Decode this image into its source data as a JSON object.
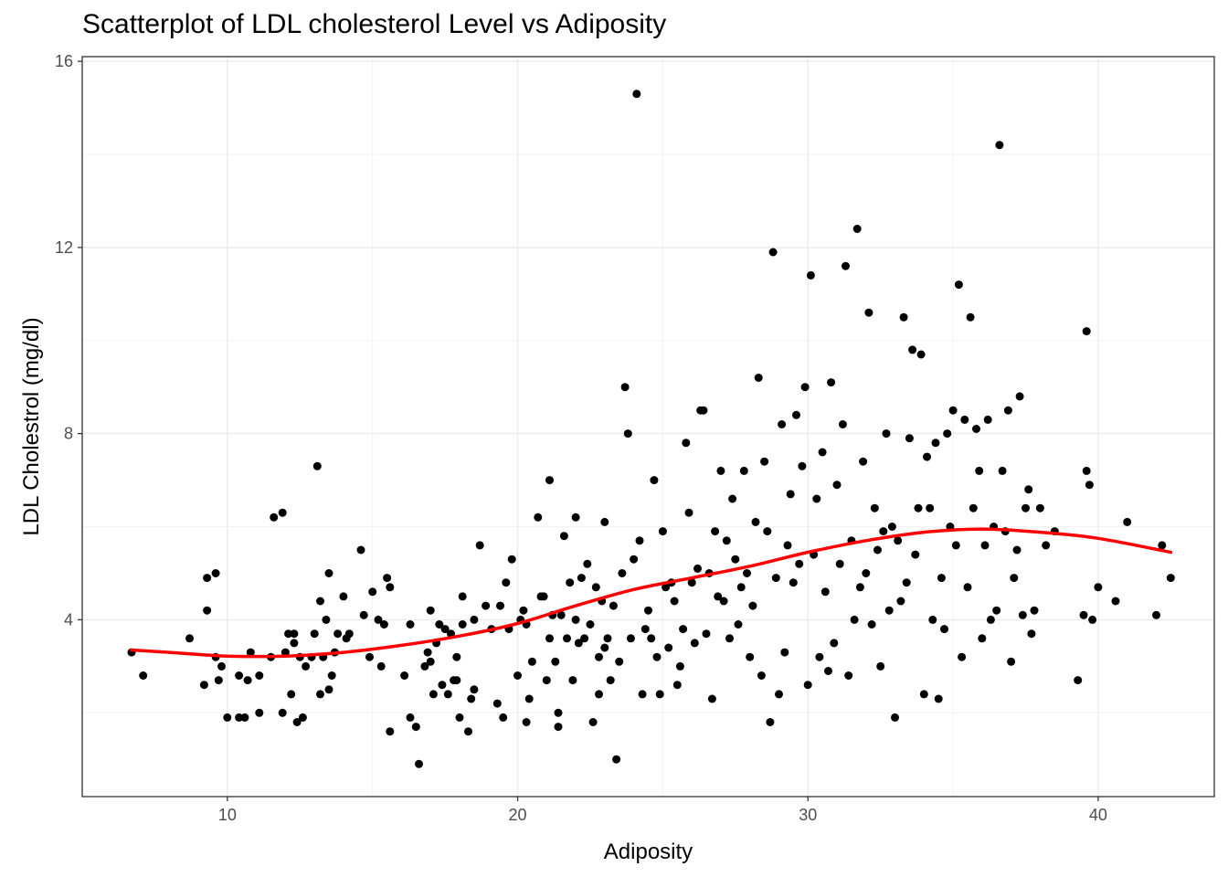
{
  "chart_data": {
    "type": "scatter",
    "title": "Scatterplot of LDL cholesterol Level vs Adiposity",
    "xlabel": "Adiposity",
    "ylabel": "LDL Cholestrol (mg/dl)",
    "xlim": [
      5,
      44
    ],
    "ylim": [
      0.2,
      16.1
    ],
    "x_ticks": [
      10,
      20,
      30,
      40
    ],
    "y_ticks": [
      4,
      8,
      12,
      16
    ],
    "x_tick_labels": [
      "10",
      "20",
      "30",
      "40"
    ],
    "y_tick_labels": [
      "4",
      "8",
      "12",
      "16"
    ],
    "grid": true,
    "point_color": "#000000",
    "line_color": "#ff0000",
    "smooth_line": [
      [
        6.7,
        3.35
      ],
      [
        8,
        3.3
      ],
      [
        10,
        3.22
      ],
      [
        12,
        3.22
      ],
      [
        14,
        3.3
      ],
      [
        16,
        3.45
      ],
      [
        18,
        3.65
      ],
      [
        20,
        3.92
      ],
      [
        22,
        4.3
      ],
      [
        24,
        4.65
      ],
      [
        26,
        4.9
      ],
      [
        28,
        5.15
      ],
      [
        30,
        5.45
      ],
      [
        32,
        5.7
      ],
      [
        34,
        5.88
      ],
      [
        36,
        5.95
      ],
      [
        38,
        5.88
      ],
      [
        40,
        5.75
      ],
      [
        42.5,
        5.45
      ]
    ],
    "points": [
      [
        6.7,
        3.3
      ],
      [
        7.1,
        2.8
      ],
      [
        8.7,
        3.6
      ],
      [
        9.2,
        2.6
      ],
      [
        9.3,
        4.9
      ],
      [
        9.3,
        4.2
      ],
      [
        9.6,
        5.0
      ],
      [
        9.6,
        3.2
      ],
      [
        9.7,
        2.7
      ],
      [
        9.8,
        3.0
      ],
      [
        10.0,
        1.9
      ],
      [
        10.4,
        1.9
      ],
      [
        10.4,
        2.8
      ],
      [
        10.6,
        1.9
      ],
      [
        10.7,
        2.7
      ],
      [
        10.8,
        3.3
      ],
      [
        11.1,
        2.8
      ],
      [
        11.1,
        2.0
      ],
      [
        11.5,
        3.2
      ],
      [
        11.6,
        6.2
      ],
      [
        11.9,
        6.3
      ],
      [
        11.9,
        2.0
      ],
      [
        12.0,
        3.3
      ],
      [
        12.1,
        3.7
      ],
      [
        12.2,
        2.4
      ],
      [
        12.3,
        3.5
      ],
      [
        12.3,
        3.7
      ],
      [
        12.4,
        1.8
      ],
      [
        12.5,
        3.2
      ],
      [
        12.6,
        1.9
      ],
      [
        12.7,
        3.0
      ],
      [
        12.9,
        3.2
      ],
      [
        13.0,
        3.7
      ],
      [
        13.1,
        7.3
      ],
      [
        13.2,
        2.4
      ],
      [
        13.2,
        4.4
      ],
      [
        13.3,
        3.2
      ],
      [
        13.4,
        4.0
      ],
      [
        13.5,
        5.0
      ],
      [
        13.5,
        2.5
      ],
      [
        13.6,
        2.8
      ],
      [
        13.7,
        3.3
      ],
      [
        13.8,
        3.7
      ],
      [
        14.0,
        4.5
      ],
      [
        14.1,
        3.6
      ],
      [
        14.2,
        3.7
      ],
      [
        14.6,
        5.5
      ],
      [
        14.7,
        4.1
      ],
      [
        14.9,
        3.2
      ],
      [
        15.0,
        4.6
      ],
      [
        15.2,
        4.0
      ],
      [
        15.3,
        3.0
      ],
      [
        15.4,
        3.9
      ],
      [
        15.5,
        4.9
      ],
      [
        15.6,
        4.7
      ],
      [
        15.6,
        1.6
      ],
      [
        16.1,
        2.8
      ],
      [
        16.3,
        1.9
      ],
      [
        16.3,
        3.9
      ],
      [
        16.5,
        1.7
      ],
      [
        16.6,
        0.9
      ],
      [
        16.8,
        3.0
      ],
      [
        16.9,
        3.3
      ],
      [
        17.0,
        3.1
      ],
      [
        17.0,
        4.2
      ],
      [
        17.1,
        2.4
      ],
      [
        17.2,
        3.5
      ],
      [
        17.3,
        3.9
      ],
      [
        17.4,
        2.6
      ],
      [
        17.5,
        3.8
      ],
      [
        17.6,
        2.4
      ],
      [
        17.7,
        3.7
      ],
      [
        17.8,
        2.7
      ],
      [
        17.9,
        3.2
      ],
      [
        17.9,
        2.7
      ],
      [
        18.0,
        1.9
      ],
      [
        18.1,
        4.5
      ],
      [
        18.1,
        3.9
      ],
      [
        18.3,
        1.6
      ],
      [
        18.4,
        2.3
      ],
      [
        18.5,
        2.5
      ],
      [
        18.5,
        4.0
      ],
      [
        18.7,
        5.6
      ],
      [
        18.9,
        4.3
      ],
      [
        19.1,
        3.8
      ],
      [
        19.3,
        2.2
      ],
      [
        19.4,
        4.3
      ],
      [
        19.5,
        1.9
      ],
      [
        19.6,
        4.8
      ],
      [
        19.7,
        3.8
      ],
      [
        19.8,
        5.3
      ],
      [
        20.0,
        2.8
      ],
      [
        20.1,
        4.0
      ],
      [
        20.2,
        4.2
      ],
      [
        20.3,
        1.8
      ],
      [
        20.3,
        3.9
      ],
      [
        20.4,
        2.3
      ],
      [
        20.5,
        3.1
      ],
      [
        20.7,
        6.2
      ],
      [
        20.8,
        4.5
      ],
      [
        20.9,
        4.5
      ],
      [
        21.0,
        2.7
      ],
      [
        21.1,
        3.6
      ],
      [
        21.1,
        7.0
      ],
      [
        21.2,
        4.1
      ],
      [
        21.3,
        3.1
      ],
      [
        21.4,
        2.0
      ],
      [
        21.4,
        1.7
      ],
      [
        21.5,
        4.1
      ],
      [
        21.6,
        5.8
      ],
      [
        21.7,
        3.6
      ],
      [
        21.8,
        4.8
      ],
      [
        21.9,
        2.7
      ],
      [
        22.0,
        4.0
      ],
      [
        22.0,
        6.2
      ],
      [
        22.1,
        3.5
      ],
      [
        22.2,
        4.9
      ],
      [
        22.3,
        3.6
      ],
      [
        22.4,
        5.2
      ],
      [
        22.5,
        3.9
      ],
      [
        22.6,
        1.8
      ],
      [
        22.7,
        4.7
      ],
      [
        22.8,
        3.2
      ],
      [
        22.8,
        2.4
      ],
      [
        22.9,
        4.4
      ],
      [
        23.0,
        3.4
      ],
      [
        23.0,
        6.1
      ],
      [
        23.1,
        3.6
      ],
      [
        23.2,
        2.7
      ],
      [
        23.3,
        4.3
      ],
      [
        23.4,
        1.0
      ],
      [
        23.5,
        3.1
      ],
      [
        23.6,
        5.0
      ],
      [
        23.7,
        9.0
      ],
      [
        23.8,
        8.0
      ],
      [
        23.9,
        3.6
      ],
      [
        24.0,
        5.3
      ],
      [
        24.1,
        15.3
      ],
      [
        24.2,
        5.7
      ],
      [
        24.3,
        2.4
      ],
      [
        24.4,
        3.8
      ],
      [
        24.5,
        4.2
      ],
      [
        24.6,
        3.6
      ],
      [
        24.7,
        7.0
      ],
      [
        24.8,
        3.2
      ],
      [
        24.9,
        2.4
      ],
      [
        25.0,
        5.9
      ],
      [
        25.1,
        4.7
      ],
      [
        25.2,
        3.4
      ],
      [
        25.3,
        4.8
      ],
      [
        25.4,
        4.4
      ],
      [
        25.5,
        2.6
      ],
      [
        25.6,
        3.0
      ],
      [
        25.7,
        3.8
      ],
      [
        25.8,
        7.8
      ],
      [
        25.9,
        6.3
      ],
      [
        26.0,
        4.8
      ],
      [
        26.1,
        3.5
      ],
      [
        26.2,
        5.1
      ],
      [
        26.3,
        8.5
      ],
      [
        26.4,
        8.5
      ],
      [
        26.5,
        3.7
      ],
      [
        26.6,
        5.0
      ],
      [
        26.7,
        2.3
      ],
      [
        26.8,
        5.9
      ],
      [
        26.9,
        4.5
      ],
      [
        27.0,
        7.2
      ],
      [
        27.1,
        4.4
      ],
      [
        27.2,
        5.7
      ],
      [
        27.3,
        3.6
      ],
      [
        27.4,
        6.6
      ],
      [
        27.5,
        5.3
      ],
      [
        27.6,
        3.9
      ],
      [
        27.7,
        4.7
      ],
      [
        27.8,
        7.2
      ],
      [
        27.9,
        5.0
      ],
      [
        28.0,
        3.2
      ],
      [
        28.1,
        4.3
      ],
      [
        28.2,
        6.1
      ],
      [
        28.3,
        9.2
      ],
      [
        28.4,
        2.8
      ],
      [
        28.5,
        7.4
      ],
      [
        28.6,
        5.9
      ],
      [
        28.7,
        1.8
      ],
      [
        28.8,
        11.9
      ],
      [
        28.9,
        4.9
      ],
      [
        29.0,
        2.4
      ],
      [
        29.1,
        8.2
      ],
      [
        29.2,
        3.3
      ],
      [
        29.3,
        5.6
      ],
      [
        29.4,
        6.7
      ],
      [
        29.5,
        4.8
      ],
      [
        29.6,
        8.4
      ],
      [
        29.7,
        5.2
      ],
      [
        29.8,
        7.3
      ],
      [
        29.9,
        9.0
      ],
      [
        30.0,
        2.6
      ],
      [
        30.1,
        11.4
      ],
      [
        30.2,
        5.4
      ],
      [
        30.3,
        6.6
      ],
      [
        30.4,
        3.2
      ],
      [
        30.5,
        7.6
      ],
      [
        30.6,
        4.6
      ],
      [
        30.7,
        2.9
      ],
      [
        30.8,
        9.1
      ],
      [
        30.9,
        3.5
      ],
      [
        31.0,
        6.9
      ],
      [
        31.1,
        5.2
      ],
      [
        31.2,
        8.2
      ],
      [
        31.3,
        11.6
      ],
      [
        31.4,
        2.8
      ],
      [
        31.5,
        5.7
      ],
      [
        31.6,
        4.0
      ],
      [
        31.7,
        12.4
      ],
      [
        31.8,
        4.7
      ],
      [
        31.9,
        7.4
      ],
      [
        32.0,
        5.0
      ],
      [
        32.1,
        10.6
      ],
      [
        32.2,
        3.9
      ],
      [
        32.3,
        6.4
      ],
      [
        32.4,
        5.5
      ],
      [
        32.5,
        3.0
      ],
      [
        32.6,
        5.9
      ],
      [
        32.7,
        8.0
      ],
      [
        32.8,
        4.2
      ],
      [
        32.9,
        6.0
      ],
      [
        33.0,
        1.9
      ],
      [
        33.1,
        5.7
      ],
      [
        33.2,
        4.4
      ],
      [
        33.3,
        10.5
      ],
      [
        33.4,
        4.8
      ],
      [
        33.5,
        7.9
      ],
      [
        33.6,
        9.8
      ],
      [
        33.7,
        5.4
      ],
      [
        33.8,
        6.4
      ],
      [
        33.9,
        9.7
      ],
      [
        34.0,
        2.4
      ],
      [
        34.1,
        7.5
      ],
      [
        34.2,
        6.4
      ],
      [
        34.3,
        4.0
      ],
      [
        34.4,
        7.8
      ],
      [
        34.5,
        2.3
      ],
      [
        34.6,
        4.9
      ],
      [
        34.7,
        3.8
      ],
      [
        34.8,
        8.0
      ],
      [
        34.9,
        6.0
      ],
      [
        35.0,
        8.5
      ],
      [
        35.1,
        5.6
      ],
      [
        35.2,
        11.2
      ],
      [
        35.3,
        3.2
      ],
      [
        35.4,
        8.3
      ],
      [
        35.5,
        4.7
      ],
      [
        35.6,
        10.5
      ],
      [
        35.7,
        6.4
      ],
      [
        35.8,
        8.1
      ],
      [
        35.9,
        7.2
      ],
      [
        36.0,
        3.6
      ],
      [
        36.1,
        5.6
      ],
      [
        36.2,
        8.3
      ],
      [
        36.3,
        4.0
      ],
      [
        36.4,
        6.0
      ],
      [
        36.5,
        4.2
      ],
      [
        36.6,
        14.2
      ],
      [
        36.7,
        7.2
      ],
      [
        36.8,
        5.9
      ],
      [
        36.9,
        8.5
      ],
      [
        37.0,
        3.1
      ],
      [
        37.1,
        4.9
      ],
      [
        37.2,
        5.5
      ],
      [
        37.3,
        8.8
      ],
      [
        37.4,
        4.1
      ],
      [
        37.5,
        6.4
      ],
      [
        37.6,
        6.8
      ],
      [
        37.7,
        3.7
      ],
      [
        37.8,
        4.2
      ],
      [
        38.0,
        6.4
      ],
      [
        38.2,
        5.6
      ],
      [
        38.5,
        5.9
      ],
      [
        39.3,
        2.7
      ],
      [
        39.5,
        4.1
      ],
      [
        39.6,
        10.2
      ],
      [
        39.6,
        7.2
      ],
      [
        39.7,
        6.9
      ],
      [
        39.8,
        4.0
      ],
      [
        40.0,
        4.7
      ],
      [
        40.6,
        4.4
      ],
      [
        41.0,
        6.1
      ],
      [
        42.0,
        4.1
      ],
      [
        42.2,
        5.6
      ],
      [
        42.5,
        4.9
      ]
    ]
  }
}
